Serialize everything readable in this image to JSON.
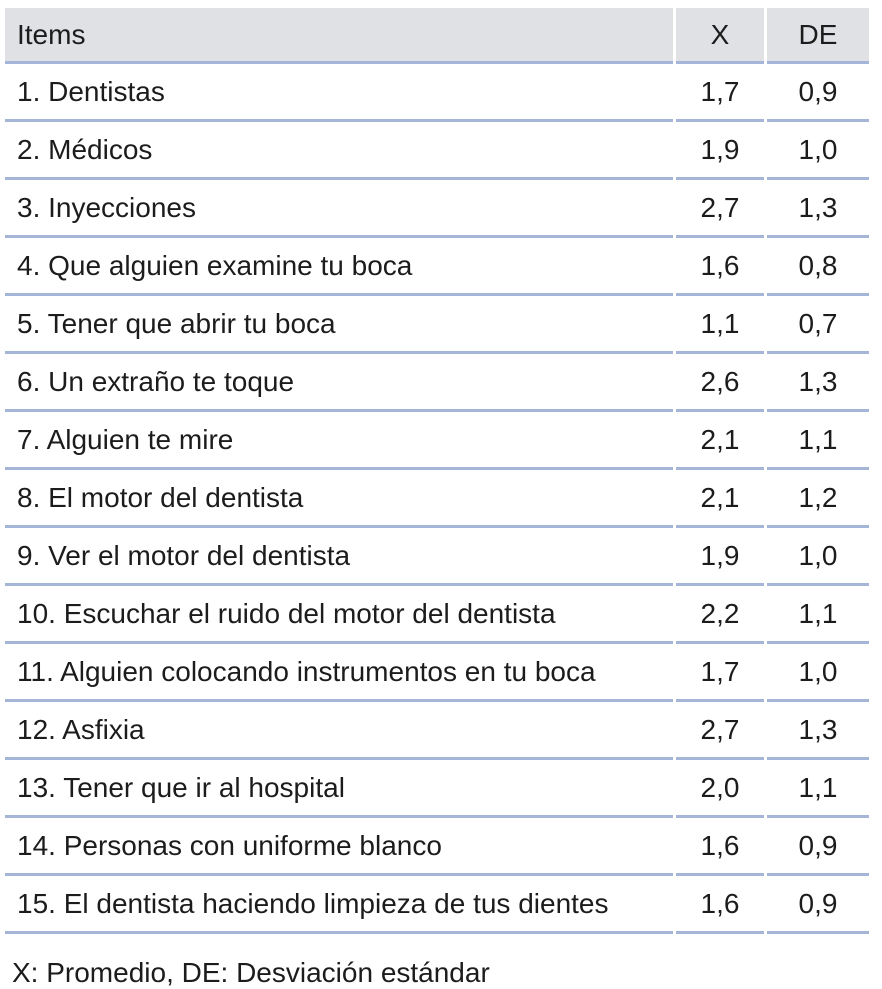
{
  "colors": {
    "header_background": "#dfe1e5",
    "divider": "#a5b5d8",
    "text": "#1c1c1c",
    "page_background": "#ffffff"
  },
  "table": {
    "columns": [
      {
        "key": "item",
        "label": "Items"
      },
      {
        "key": "x",
        "label": "X"
      },
      {
        "key": "de",
        "label": "DE"
      }
    ],
    "rows": [
      {
        "item": "1. Dentistas",
        "x": "1,7",
        "de": "0,9"
      },
      {
        "item": "2. Médicos",
        "x": "1,9",
        "de": "1,0"
      },
      {
        "item": "3. Inyecciones",
        "x": "2,7",
        "de": "1,3"
      },
      {
        "item": "4. Que alguien examine tu boca",
        "x": "1,6",
        "de": "0,8"
      },
      {
        "item": "5. Tener que abrir tu boca",
        "x": "1,1",
        "de": "0,7"
      },
      {
        "item": "6. Un extraño te toque",
        "x": "2,6",
        "de": "1,3"
      },
      {
        "item": "7. Alguien te mire",
        "x": "2,1",
        "de": "1,1"
      },
      {
        "item": "8. El motor del dentista",
        "x": "2,1",
        "de": "1,2"
      },
      {
        "item": "9. Ver el motor del dentista",
        "x": "1,9",
        "de": "1,0"
      },
      {
        "item": "10. Escuchar el ruido del motor del dentista",
        "x": "2,2",
        "de": "1,1"
      },
      {
        "item": "11. Alguien colocando instrumentos en tu boca",
        "x": "1,7",
        "de": "1,0"
      },
      {
        "item": "12. Asfixia",
        "x": "2,7",
        "de": "1,3"
      },
      {
        "item": "13. Tener que ir al hospital",
        "x": "2,0",
        "de": "1,1"
      },
      {
        "item": "14. Personas con uniforme blanco",
        "x": "1,6",
        "de": "0,9"
      },
      {
        "item": "15. El dentista haciendo limpieza de tus dientes",
        "x": "1,6",
        "de": "0,9"
      }
    ],
    "footnote": "X: Promedio, DE: Desviación estándar"
  }
}
